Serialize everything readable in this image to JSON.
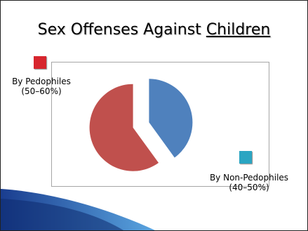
{
  "slide": {
    "title_part1": "Sex Offenses Against ",
    "title_part2": "Children"
  },
  "chart_data": {
    "type": "pie",
    "title": "Sex Offenses Against Children",
    "exploded": true,
    "legend_placement": "outside-corners",
    "series": [
      {
        "name": "By Pedophiles",
        "range_label": "(50–60%)",
        "value": 60,
        "color": "#c0504d",
        "legend_color": "#d7262e"
      },
      {
        "name": "By Non-Pedophiles",
        "range_label": "(40–50%)",
        "value": 40,
        "color": "#4f81bd",
        "legend_color": "#2aa5c2"
      }
    ]
  },
  "theme": {
    "swoosh_dark": "#1a3d8f",
    "swoosh_light": "#5aa5e0"
  }
}
